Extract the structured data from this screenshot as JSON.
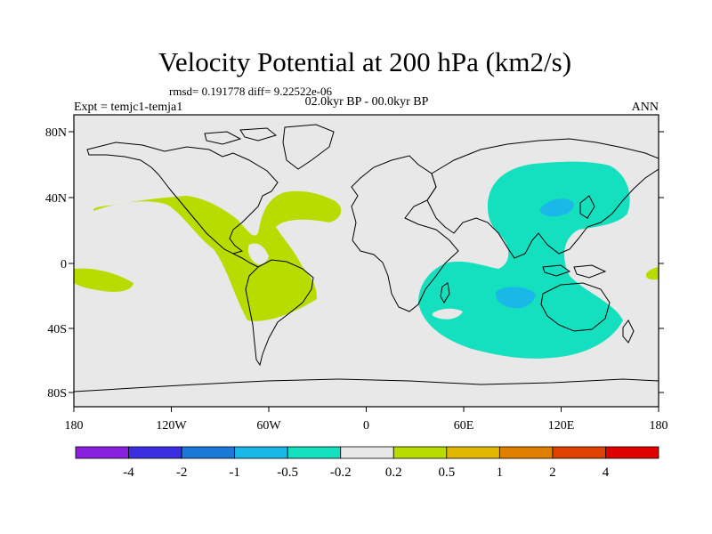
{
  "title": "Velocity Potential at 200 hPa (km2/s)",
  "stats": "rmsd= 0.191778 diff= 9.22522e-06",
  "experiment": "Expt = temjc1-temja1",
  "period": "02.0kyr BP - 00.0kyr BP",
  "season": "ANN",
  "map": {
    "lon_ticks": [
      "180",
      "120W",
      "60W",
      "0",
      "60E",
      "120E",
      "180"
    ],
    "lat_ticks": [
      "80N",
      "40N",
      "0",
      "40S",
      "80S"
    ],
    "ocean_color": "#e8e8e8",
    "coast_color": "#000000"
  },
  "colorbar": {
    "colors": [
      "#8a1fe0",
      "#3b2ee0",
      "#1a78d8",
      "#1ab8e8",
      "#14e0c0",
      "#e8e8e8",
      "#b8dc00",
      "#e0b800",
      "#e08000",
      "#e04000",
      "#e00000"
    ],
    "labels": [
      "-4",
      "-2",
      "-1",
      "-0.5",
      "-0.2",
      "0.2",
      "0.5",
      "1",
      "2",
      "4"
    ]
  },
  "fields": {
    "positive_color": "#b8dc00",
    "negative_color": "#14e0c0",
    "negative_strong_color": "#1ab8e8"
  }
}
